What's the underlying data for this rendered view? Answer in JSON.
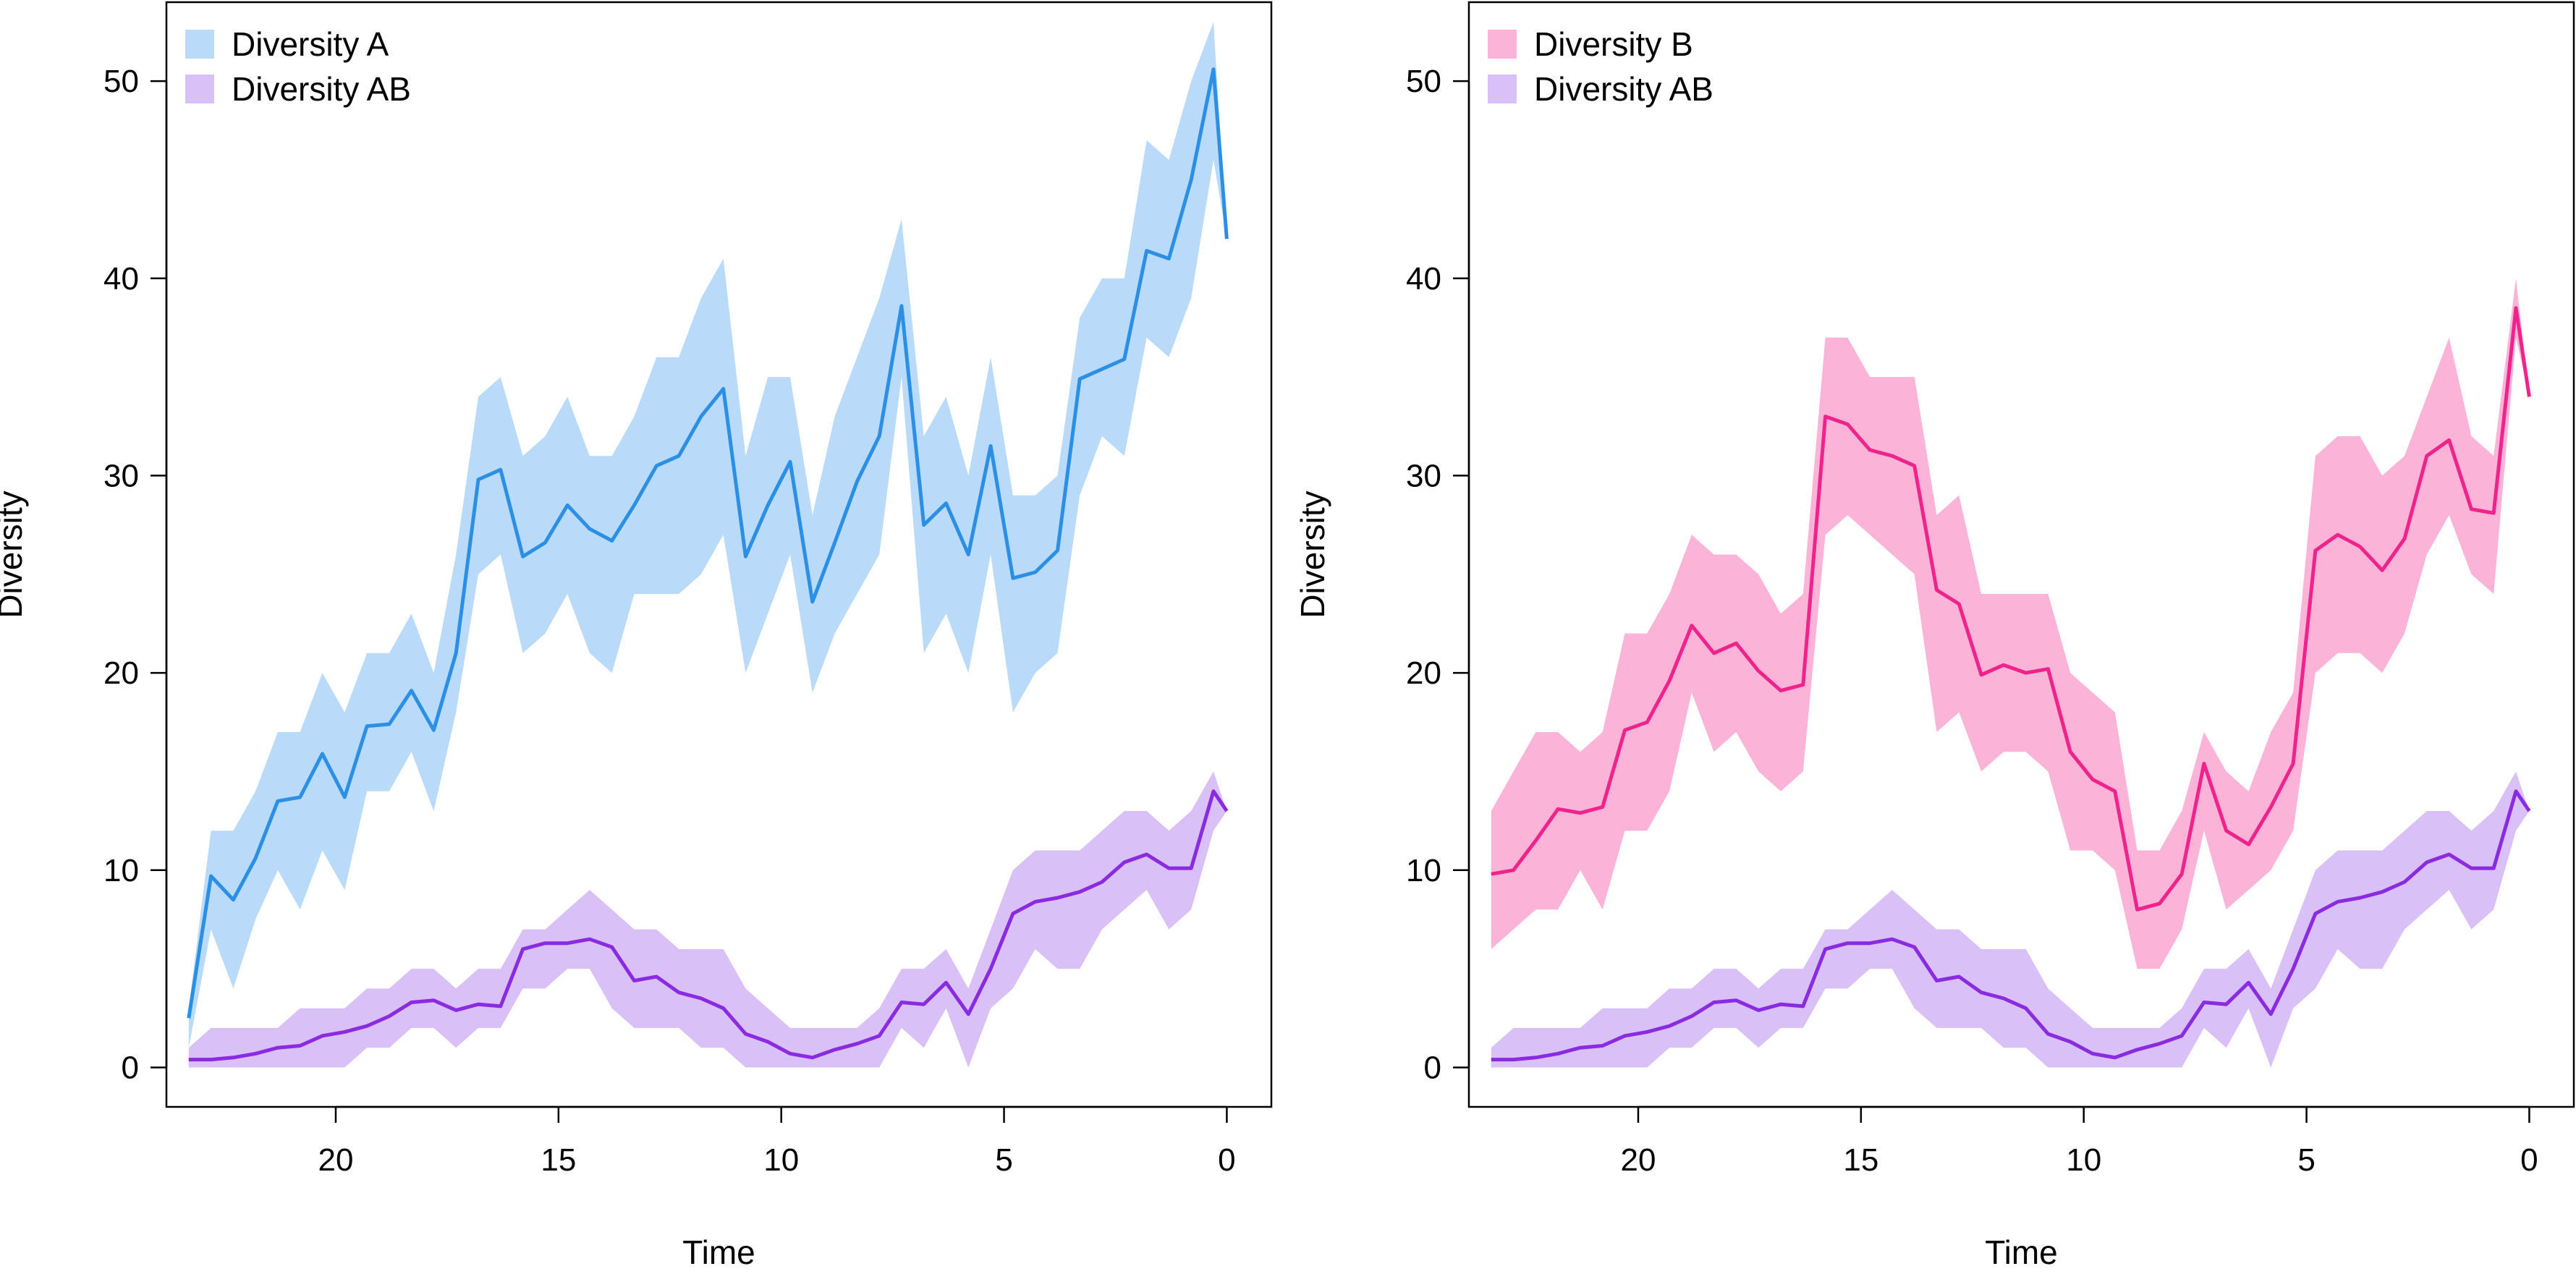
{
  "chart_data": [
    {
      "type": "area",
      "xlabel": "Time",
      "ylabel": "Diversity",
      "xlim": [
        23.8,
        -1.0
      ],
      "ylim": [
        -2,
        54
      ],
      "x_ticks": [
        20,
        15,
        10,
        5,
        0
      ],
      "y_ticks": [
        0,
        10,
        20,
        30,
        40,
        50
      ],
      "legend_position": "top-left",
      "x": [
        23.3,
        22.8,
        22.3,
        21.8,
        21.3,
        20.8,
        20.3,
        19.8,
        19.3,
        18.8,
        18.3,
        17.8,
        17.3,
        16.8,
        16.3,
        15.8,
        15.3,
        14.8,
        14.3,
        13.8,
        13.3,
        12.8,
        12.3,
        11.8,
        11.3,
        10.8,
        10.3,
        9.8,
        9.3,
        8.8,
        8.3,
        7.8,
        7.3,
        6.8,
        6.3,
        5.8,
        5.3,
        4.8,
        4.3,
        3.8,
        3.3,
        2.8,
        2.3,
        1.8,
        1.3,
        0.8,
        0.3,
        0.0
      ],
      "series": [
        {
          "name": "Diversity A",
          "line_color": "#2b8fe6",
          "band_color": "#b9dbf9",
          "mean": [
            2.5,
            9.7,
            8.5,
            10.6,
            13.5,
            13.7,
            15.9,
            13.7,
            17.3,
            17.4,
            19.1,
            17.1,
            21.0,
            29.8,
            30.3,
            25.9,
            26.6,
            28.5,
            27.3,
            26.7,
            28.5,
            30.5,
            31.0,
            33.0,
            34.4,
            25.9,
            28.5,
            30.7,
            23.6,
            26.6,
            29.7,
            32.0,
            38.6,
            27.5,
            28.6,
            26.0,
            31.5,
            24.8,
            25.1,
            26.2,
            34.9,
            35.4,
            35.9,
            41.4,
            41.0,
            45.0,
            50.6,
            42.0
          ],
          "lower": [
            1.0,
            7.0,
            4.0,
            7.5,
            10.0,
            8.0,
            11.0,
            9.0,
            14.0,
            14.0,
            16.0,
            13.0,
            18.0,
            25.0,
            26.0,
            21.0,
            22.0,
            24.0,
            21.0,
            20.0,
            24.0,
            24.0,
            24.0,
            25.0,
            27.0,
            20.0,
            23.0,
            26.0,
            19.0,
            22.0,
            24.0,
            26.0,
            35.0,
            21.0,
            23.0,
            20.0,
            26.0,
            18.0,
            20.0,
            21.0,
            29.0,
            32.0,
            31.0,
            37.0,
            36.0,
            39.0,
            46.0,
            42.0
          ],
          "upper": [
            3.0,
            12.0,
            12.0,
            14.0,
            17.0,
            17.0,
            20.0,
            18.0,
            21.0,
            21.0,
            23.0,
            20.0,
            26.0,
            34.0,
            35.0,
            31.0,
            32.0,
            34.0,
            31.0,
            31.0,
            33.0,
            36.0,
            36.0,
            39.0,
            41.0,
            31.0,
            35.0,
            35.0,
            28.0,
            33.0,
            36.0,
            39.0,
            43.0,
            32.0,
            34.0,
            30.0,
            36.0,
            29.0,
            29.0,
            30.0,
            38.0,
            40.0,
            40.0,
            47.0,
            46.0,
            50.0,
            53.0,
            42.0
          ]
        },
        {
          "name": "Diversity AB",
          "line_color": "#8a2be2",
          "band_color": "#d9c0f7",
          "mean": [
            0.4,
            0.4,
            0.5,
            0.7,
            1.0,
            1.1,
            1.6,
            1.8,
            2.1,
            2.6,
            3.3,
            3.4,
            2.9,
            3.2,
            3.1,
            6.0,
            6.3,
            6.3,
            6.5,
            6.1,
            4.4,
            4.6,
            3.8,
            3.5,
            3.0,
            1.7,
            1.3,
            0.7,
            0.5,
            0.9,
            1.2,
            1.6,
            3.3,
            3.2,
            4.3,
            2.7,
            5.0,
            7.8,
            8.4,
            8.6,
            8.9,
            9.4,
            10.4,
            10.8,
            10.1,
            10.1,
            14.0,
            13.0
          ],
          "lower": [
            0.0,
            0.0,
            0.0,
            0.0,
            0.0,
            0.0,
            0.0,
            0.0,
            1.0,
            1.0,
            2.0,
            2.0,
            1.0,
            2.0,
            2.0,
            4.0,
            4.0,
            5.0,
            5.0,
            3.0,
            2.0,
            2.0,
            2.0,
            1.0,
            1.0,
            0.0,
            0.0,
            0.0,
            0.0,
            0.0,
            0.0,
            0.0,
            2.0,
            1.0,
            3.0,
            0.0,
            3.0,
            4.0,
            6.0,
            5.0,
            5.0,
            7.0,
            8.0,
            9.0,
            7.0,
            8.0,
            12.0,
            13.0
          ],
          "upper": [
            1.0,
            2.0,
            2.0,
            2.0,
            2.0,
            3.0,
            3.0,
            3.0,
            4.0,
            4.0,
            5.0,
            5.0,
            4.0,
            5.0,
            5.0,
            7.0,
            7.0,
            8.0,
            9.0,
            8.0,
            7.0,
            7.0,
            6.0,
            6.0,
            6.0,
            4.0,
            3.0,
            2.0,
            2.0,
            2.0,
            2.0,
            3.0,
            5.0,
            5.0,
            6.0,
            4.0,
            7.0,
            10.0,
            11.0,
            11.0,
            11.0,
            12.0,
            13.0,
            13.0,
            12.0,
            13.0,
            15.0,
            13.0
          ]
        }
      ]
    },
    {
      "type": "area",
      "xlabel": "Time",
      "ylabel": "Diversity",
      "xlim": [
        23.8,
        -1.0
      ],
      "ylim": [
        -2,
        54
      ],
      "x_ticks": [
        20,
        15,
        10,
        5,
        0
      ],
      "y_ticks": [
        0,
        10,
        20,
        30,
        40,
        50
      ],
      "legend_position": "top-left",
      "x": [
        23.3,
        22.8,
        22.3,
        21.8,
        21.3,
        20.8,
        20.3,
        19.8,
        19.3,
        18.8,
        18.3,
        17.8,
        17.3,
        16.8,
        16.3,
        15.8,
        15.3,
        14.8,
        14.3,
        13.8,
        13.3,
        12.8,
        12.3,
        11.8,
        11.3,
        10.8,
        10.3,
        9.8,
        9.3,
        8.8,
        8.3,
        7.8,
        7.3,
        6.8,
        6.3,
        5.8,
        5.3,
        4.8,
        4.3,
        3.8,
        3.3,
        2.8,
        2.3,
        1.8,
        1.3,
        0.8,
        0.3,
        0.0
      ],
      "series": [
        {
          "name": "Diversity B",
          "line_color": "#f0238c",
          "band_color": "#fbb4d7",
          "mean": [
            9.8,
            10.0,
            11.5,
            13.1,
            12.9,
            13.2,
            17.1,
            17.5,
            19.6,
            22.4,
            21.0,
            21.5,
            20.1,
            19.1,
            19.4,
            33.0,
            32.6,
            31.3,
            31.0,
            30.5,
            24.2,
            23.5,
            19.9,
            20.4,
            20.0,
            20.2,
            16.0,
            14.6,
            14.0,
            8.0,
            8.3,
            9.8,
            15.4,
            12.0,
            11.3,
            13.2,
            15.4,
            26.2,
            27.0,
            26.4,
            25.2,
            26.8,
            31.0,
            31.8,
            28.3,
            28.1,
            38.5,
            34.0
          ],
          "lower": [
            6.0,
            7.0,
            8.0,
            8.0,
            10.0,
            8.0,
            12.0,
            12.0,
            14.0,
            19.0,
            16.0,
            17.0,
            15.0,
            14.0,
            15.0,
            27.0,
            28.0,
            27.0,
            26.0,
            25.0,
            17.0,
            18.0,
            15.0,
            16.0,
            16.0,
            15.0,
            11.0,
            11.0,
            10.0,
            5.0,
            5.0,
            7.0,
            12.0,
            8.0,
            9.0,
            10.0,
            12.0,
            20.0,
            21.0,
            21.0,
            20.0,
            22.0,
            26.0,
            28.0,
            25.0,
            24.0,
            37.0,
            34.0
          ],
          "upper": [
            13.0,
            15.0,
            17.0,
            17.0,
            16.0,
            17.0,
            22.0,
            22.0,
            24.0,
            27.0,
            26.0,
            26.0,
            25.0,
            23.0,
            24.0,
            37.0,
            37.0,
            35.0,
            35.0,
            35.0,
            28.0,
            29.0,
            24.0,
            24.0,
            24.0,
            24.0,
            20.0,
            19.0,
            18.0,
            11.0,
            11.0,
            13.0,
            17.0,
            15.0,
            14.0,
            17.0,
            19.0,
            31.0,
            32.0,
            32.0,
            30.0,
            31.0,
            34.0,
            37.0,
            32.0,
            31.0,
            40.0,
            34.0
          ]
        },
        {
          "name": "Diversity AB",
          "line_color": "#8a2be2",
          "band_color": "#d9c0f7",
          "mean": [
            0.4,
            0.4,
            0.5,
            0.7,
            1.0,
            1.1,
            1.6,
            1.8,
            2.1,
            2.6,
            3.3,
            3.4,
            2.9,
            3.2,
            3.1,
            6.0,
            6.3,
            6.3,
            6.5,
            6.1,
            4.4,
            4.6,
            3.8,
            3.5,
            3.0,
            1.7,
            1.3,
            0.7,
            0.5,
            0.9,
            1.2,
            1.6,
            3.3,
            3.2,
            4.3,
            2.7,
            5.0,
            7.8,
            8.4,
            8.6,
            8.9,
            9.4,
            10.4,
            10.8,
            10.1,
            10.1,
            14.0,
            13.0
          ],
          "lower": [
            0.0,
            0.0,
            0.0,
            0.0,
            0.0,
            0.0,
            0.0,
            0.0,
            1.0,
            1.0,
            2.0,
            2.0,
            1.0,
            2.0,
            2.0,
            4.0,
            4.0,
            5.0,
            5.0,
            3.0,
            2.0,
            2.0,
            2.0,
            1.0,
            1.0,
            0.0,
            0.0,
            0.0,
            0.0,
            0.0,
            0.0,
            0.0,
            2.0,
            1.0,
            3.0,
            0.0,
            3.0,
            4.0,
            6.0,
            5.0,
            5.0,
            7.0,
            8.0,
            9.0,
            7.0,
            8.0,
            12.0,
            13.0
          ],
          "upper": [
            1.0,
            2.0,
            2.0,
            2.0,
            2.0,
            3.0,
            3.0,
            3.0,
            4.0,
            4.0,
            5.0,
            5.0,
            4.0,
            5.0,
            5.0,
            7.0,
            7.0,
            8.0,
            9.0,
            8.0,
            7.0,
            7.0,
            6.0,
            6.0,
            6.0,
            4.0,
            3.0,
            2.0,
            2.0,
            2.0,
            2.0,
            3.0,
            5.0,
            5.0,
            6.0,
            4.0,
            7.0,
            10.0,
            11.0,
            11.0,
            11.0,
            12.0,
            13.0,
            13.0,
            12.0,
            13.0,
            15.0,
            13.0
          ]
        }
      ]
    }
  ]
}
